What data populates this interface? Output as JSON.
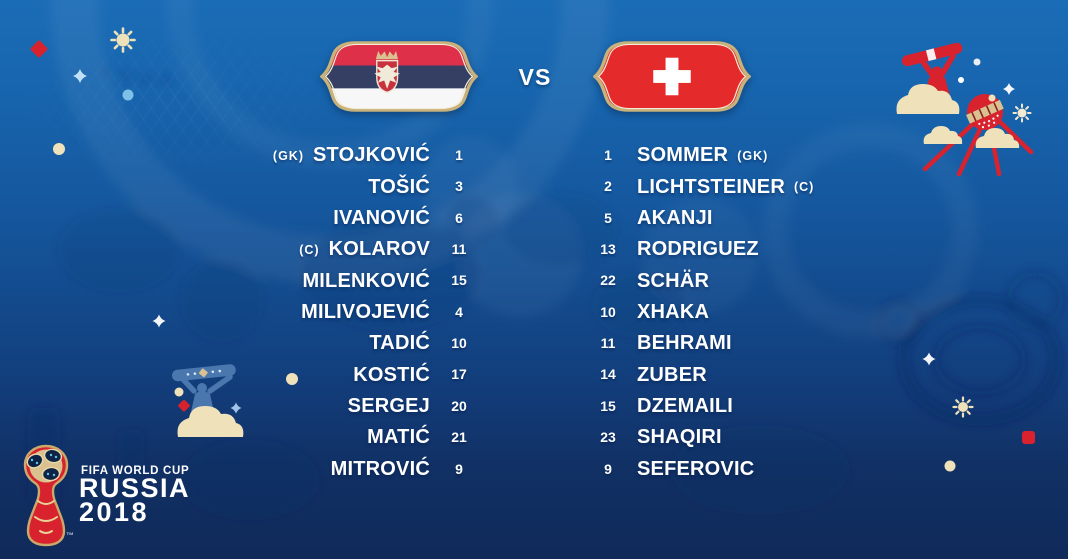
{
  "vs_label": "VS",
  "teams": [
    {
      "side": "left",
      "flag": "serbia-flag-badge",
      "players": [
        {
          "role": "(GK)",
          "name": "STOJKOVIĆ",
          "number": "1"
        },
        {
          "name": "TOŠIĆ",
          "number": "3"
        },
        {
          "name": "IVANOVIĆ",
          "number": "6"
        },
        {
          "role": "(C)",
          "name": "KOLAROV",
          "number": "11"
        },
        {
          "name": "MILENKOVIĆ",
          "number": "15"
        },
        {
          "name": "MILIVOJEVIĆ",
          "number": "4"
        },
        {
          "name": "TADIĆ",
          "number": "10"
        },
        {
          "name": "KOSTIĆ",
          "number": "17"
        },
        {
          "name": "SERGEJ",
          "number": "20"
        },
        {
          "name": "MATIĆ",
          "number": "21"
        },
        {
          "name": "MITROVIĆ",
          "number": "9"
        }
      ]
    },
    {
      "side": "right",
      "flag": "switzerland-flag-badge",
      "players": [
        {
          "name": "SOMMER",
          "role": "(GK)",
          "number": "1"
        },
        {
          "name": "LICHTSTEINER",
          "role": "(C)",
          "number": "2"
        },
        {
          "name": "AKANJI",
          "number": "5"
        },
        {
          "name": "RODRIGUEZ",
          "number": "13"
        },
        {
          "name": "SCHÄR",
          "number": "22"
        },
        {
          "name": "XHAKA",
          "number": "10"
        },
        {
          "name": "BEHRAMI",
          "number": "11"
        },
        {
          "name": "ZUBER",
          "number": "14"
        },
        {
          "name": "DZEMAILI",
          "number": "15"
        },
        {
          "name": "SHAQIRI",
          "number": "23"
        },
        {
          "name": "SEFEROVIC",
          "number": "9"
        }
      ]
    }
  ],
  "footer": {
    "fifa_line": "FIFA WORLD CUP",
    "russia": "RUSSIA",
    "year": "2018",
    "trademark": "™"
  },
  "icons": [
    "serbia-flag-badge",
    "switzerland-flag-badge",
    "world-cup-trophy-logo",
    "stargazer-telescope-icon",
    "sputnik-icon",
    "fan-banner-icon",
    "cloud-icon",
    "sunburst-icon",
    "sparkle-icon",
    "diamond-icon"
  ],
  "colors": {
    "bg_top": "#1b6cb6",
    "bg_bottom": "#102a5a",
    "accent_red": "#d8232e",
    "cream": "#efe1ba",
    "gold": "#d9c28f",
    "text": "#ffffff",
    "serbia_red": "#de3048",
    "serbia_blue": "#343f63",
    "serbia_white": "#f7f7f7",
    "swiss_red": "#e42a2a",
    "badge_border": "#c8b27a",
    "figure_blue": "#4a77ae"
  }
}
